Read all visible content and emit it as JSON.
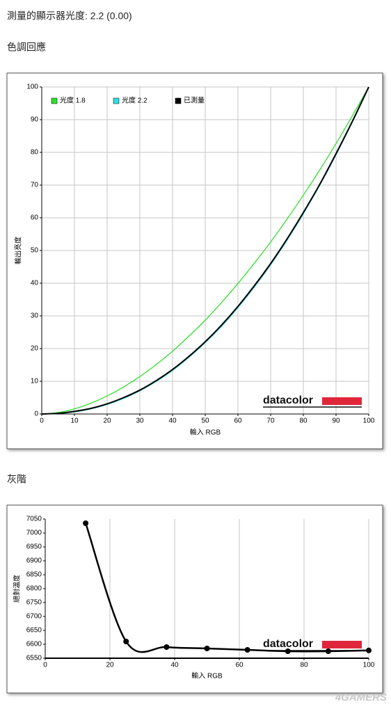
{
  "header": {
    "title": "測量的顯示器光度: 2.2 (0.00)"
  },
  "sections": [
    {
      "title": "色調回應"
    },
    {
      "title": "灰階"
    }
  ],
  "branding": {
    "logo": "datacolor",
    "watermark": "4GAMERS"
  },
  "chart_data": [
    {
      "type": "line",
      "smooth": true,
      "markers": false,
      "grid": "both",
      "legend": "upper left",
      "x_label": "輸入 RGB",
      "y_label": "輸出亮度",
      "x": [
        0,
        5,
        10,
        15,
        20,
        25,
        30,
        35,
        40,
        45,
        50,
        55,
        60,
        65,
        70,
        75,
        80,
        85,
        90,
        95,
        100
      ],
      "series": [
        {
          "name": "光度 1.8",
          "color": "#33dd33",
          "values": [
            0,
            0.46,
            1.58,
            3.29,
            5.52,
            8.25,
            11.45,
            15.1,
            19.2,
            23.8,
            28.7,
            34.1,
            39.9,
            46.1,
            52.6,
            59.6,
            66.9,
            74.6,
            82.7,
            91.2,
            100
          ]
        },
        {
          "name": "光度 2.2",
          "color": "#33dddd",
          "values": [
            0,
            0.14,
            0.63,
            1.54,
            2.9,
            4.74,
            7.07,
            9.93,
            13.3,
            17.3,
            21.8,
            26.8,
            32.5,
            38.8,
            45.6,
            53.1,
            61.2,
            69.9,
            79.3,
            89.3,
            100
          ]
        },
        {
          "name": "已測量",
          "color": "#000000",
          "values": [
            0,
            0.2,
            0.8,
            1.7,
            3.1,
            5.0,
            7.3,
            10.2,
            13.6,
            17.6,
            22.1,
            27.2,
            32.9,
            39.2,
            46.0,
            53.5,
            61.6,
            70.2,
            79.6,
            89.5,
            100
          ]
        }
      ],
      "xlim": [
        0,
        100
      ],
      "xticks": [
        0,
        10,
        20,
        30,
        40,
        50,
        60,
        70,
        80,
        90,
        100
      ],
      "ylim": [
        0,
        100
      ],
      "yticks": [
        0,
        10,
        20,
        30,
        40,
        50,
        60,
        70,
        80,
        90,
        100
      ]
    },
    {
      "type": "line",
      "smooth": true,
      "markers": true,
      "grid": "x",
      "x_label": "輸入 RGB",
      "y_label": "絕對溫度",
      "x": [
        12.5,
        25,
        37.5,
        50,
        62.5,
        75,
        87.5,
        100
      ],
      "series": [
        {
          "color": "#000000",
          "values": [
            7035,
            6610,
            6590,
            6585,
            6580,
            6575,
            6575,
            6578
          ]
        }
      ],
      "xlim": [
        0,
        100
      ],
      "xticks": [
        0,
        20,
        40,
        60,
        80,
        100
      ],
      "ylim": [
        6550,
        7050
      ],
      "yticks": [
        6550,
        6600,
        6650,
        6700,
        6750,
        6800,
        6850,
        6900,
        6950,
        7000,
        7050
      ]
    }
  ]
}
